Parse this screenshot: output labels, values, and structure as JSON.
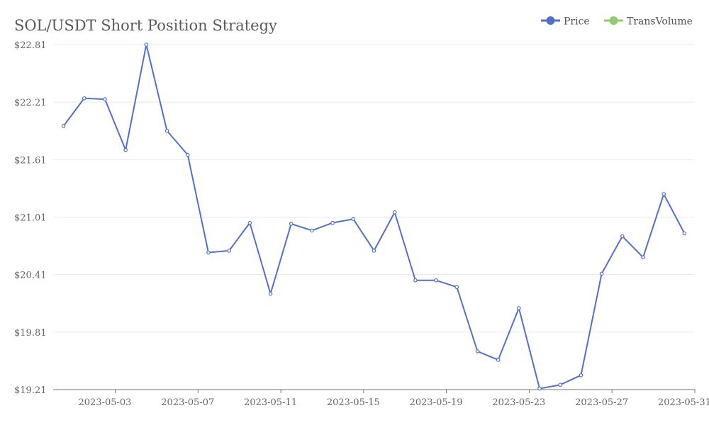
{
  "chart_data": {
    "type": "line",
    "title": "SOL/USDT Short Position Strategy",
    "xlabel": "",
    "ylabel": "",
    "x": [
      "2023-05-01",
      "2023-05-02",
      "2023-05-03",
      "2023-05-04",
      "2023-05-05",
      "2023-05-06",
      "2023-05-07",
      "2023-05-08",
      "2023-05-09",
      "2023-05-10",
      "2023-05-11",
      "2023-05-12",
      "2023-05-13",
      "2023-05-14",
      "2023-05-15",
      "2023-05-16",
      "2023-05-17",
      "2023-05-18",
      "2023-05-19",
      "2023-05-20",
      "2023-05-21",
      "2023-05-22",
      "2023-05-23",
      "2023-05-24",
      "2023-05-25",
      "2023-05-26",
      "2023-05-27",
      "2023-05-28",
      "2023-05-29",
      "2023-05-30",
      "2023-05-31"
    ],
    "series": [
      {
        "name": "Price",
        "color": "#5470c6",
        "values": [
          21.96,
          22.25,
          22.24,
          21.71,
          22.81,
          21.91,
          21.66,
          20.64,
          20.66,
          20.95,
          20.21,
          20.94,
          20.87,
          20.95,
          20.99,
          20.66,
          21.06,
          20.35,
          20.35,
          20.28,
          19.61,
          19.52,
          20.06,
          19.22,
          19.26,
          19.36,
          20.42,
          20.81,
          20.59,
          21.25,
          20.84
        ]
      }
    ],
    "legend": {
      "placement": "top-right",
      "entries": [
        {
          "name": "Price",
          "color": "#5470c6"
        },
        {
          "name": "TransVolume",
          "color": "#91cc75"
        }
      ]
    },
    "x_tick_labels": [
      "2023-05-03",
      "2023-05-07",
      "2023-05-11",
      "2023-05-15",
      "2023-05-19",
      "2023-05-23",
      "2023-05-27",
      "2023-05-31"
    ],
    "y_tick_labels": [
      "$19.21",
      "$19.81",
      "$20.41",
      "$21.01",
      "$21.61",
      "$22.21",
      "$22.81"
    ],
    "y_ticks": [
      19.21,
      19.81,
      20.41,
      21.01,
      21.61,
      22.21,
      22.81
    ],
    "ylim": [
      19.21,
      22.81
    ],
    "grid": true
  }
}
